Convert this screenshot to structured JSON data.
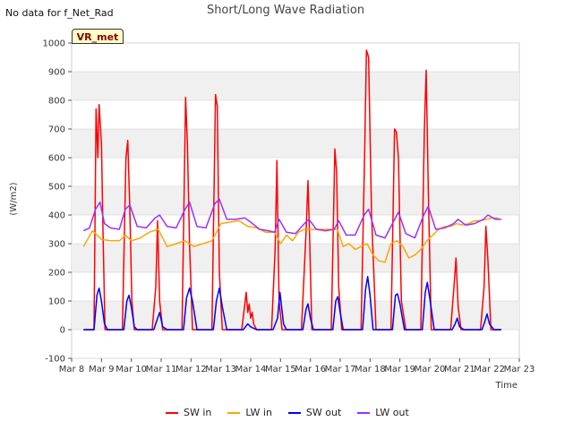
{
  "header": {
    "nodata_text": "No data for f_Net_Rad",
    "badge_text": "VR_met"
  },
  "chart_data": {
    "type": "line",
    "title": "Short/Long Wave Radiation",
    "xlabel": "Time",
    "ylabel": "(W/m2)",
    "ylim": [
      -100,
      1000
    ],
    "yticks": [
      -100,
      0,
      100,
      200,
      300,
      400,
      500,
      600,
      700,
      800,
      900,
      1000
    ],
    "xlim": [
      8,
      23
    ],
    "xticks": [
      8,
      9,
      10,
      11,
      12,
      13,
      14,
      15,
      16,
      17,
      18,
      19,
      20,
      21,
      22,
      23
    ],
    "xtick_labels": [
      "Mar 8",
      "Mar 9",
      "Mar 10",
      "Mar 11",
      "Mar 12",
      "Mar 13",
      "Mar 14",
      "Mar 15",
      "Mar 16",
      "Mar 17",
      "Mar 18",
      "Mar 19",
      "Mar 20",
      "Mar 21",
      "Mar 22",
      "Mar 23"
    ],
    "grid": true,
    "legend_position": "bottom",
    "series": [
      {
        "name": "SW in",
        "color": "#ff0000",
        "x": [
          8.4,
          8.75,
          8.82,
          8.88,
          8.92,
          9.0,
          9.06,
          9.12,
          9.2,
          9.7,
          9.82,
          9.88,
          9.95,
          10.02,
          10.1,
          10.18,
          10.7,
          10.82,
          10.88,
          10.95,
          11.05,
          11.2,
          11.7,
          11.82,
          11.88,
          11.95,
          12.05,
          12.2,
          12.7,
          12.82,
          12.88,
          12.95,
          13.05,
          13.2,
          13.7,
          13.85,
          13.9,
          13.95,
          14.0,
          14.05,
          14.1,
          14.2,
          14.7,
          14.82,
          14.88,
          14.95,
          15.05,
          15.2,
          15.7,
          15.85,
          15.92,
          15.98,
          16.05,
          16.15,
          16.7,
          16.82,
          16.88,
          16.95,
          17.05,
          17.2,
          17.7,
          17.82,
          17.88,
          17.95,
          18.05,
          18.2,
          18.7,
          18.82,
          18.88,
          18.95,
          19.05,
          19.2,
          19.7,
          19.82,
          19.88,
          19.95,
          20.05,
          20.2,
          20.7,
          20.82,
          20.88,
          20.95,
          21.05,
          21.2,
          21.7,
          21.82,
          21.88,
          21.95,
          22.05,
          22.2,
          22.4
        ],
        "y": [
          0,
          0,
          770,
          600,
          785,
          650,
          300,
          0,
          0,
          0,
          600,
          660,
          420,
          100,
          0,
          0,
          0,
          150,
          380,
          100,
          0,
          0,
          0,
          810,
          650,
          300,
          0,
          0,
          0,
          820,
          780,
          200,
          0,
          0,
          0,
          130,
          60,
          90,
          40,
          60,
          20,
          0,
          0,
          280,
          590,
          100,
          0,
          0,
          0,
          330,
          520,
          300,
          0,
          0,
          0,
          630,
          550,
          150,
          0,
          0,
          0,
          620,
          975,
          950,
          400,
          0,
          0,
          700,
          690,
          600,
          100,
          0,
          0,
          700,
          905,
          500,
          0,
          0,
          0,
          160,
          250,
          80,
          0,
          0,
          0,
          150,
          360,
          240,
          0,
          0,
          0
        ]
      },
      {
        "name": "LW in",
        "color": "#ffa500",
        "x": [
          8.4,
          8.7,
          9.0,
          9.3,
          9.6,
          9.8,
          10.0,
          10.3,
          10.6,
          10.9,
          11.2,
          11.5,
          11.8,
          12.1,
          12.4,
          12.7,
          13.0,
          13.3,
          13.6,
          13.9,
          14.2,
          14.5,
          14.8,
          15.0,
          15.2,
          15.4,
          15.6,
          15.8,
          16.0,
          16.3,
          16.6,
          16.9,
          17.1,
          17.3,
          17.5,
          17.7,
          17.9,
          18.1,
          18.3,
          18.5,
          18.7,
          18.9,
          19.1,
          19.3,
          19.5,
          19.7,
          19.9,
          20.1,
          20.3,
          20.5,
          20.7,
          20.9,
          21.1,
          21.3,
          21.5,
          21.7,
          21.9,
          22.1,
          22.3
        ],
        "y": [
          290,
          345,
          315,
          310,
          310,
          330,
          310,
          320,
          340,
          350,
          290,
          300,
          310,
          290,
          300,
          310,
          370,
          375,
          380,
          360,
          355,
          340,
          340,
          300,
          330,
          310,
          340,
          350,
          350,
          350,
          350,
          350,
          290,
          300,
          280,
          290,
          300,
          260,
          240,
          235,
          300,
          310,
          290,
          250,
          260,
          280,
          310,
          330,
          350,
          360,
          360,
          370,
          365,
          370,
          380,
          380,
          385,
          390,
          390
        ]
      },
      {
        "name": "SW out",
        "color": "#0000ff",
        "x": [
          8.4,
          8.75,
          8.85,
          8.92,
          9.0,
          9.1,
          9.2,
          9.75,
          9.85,
          9.92,
          10.0,
          10.1,
          10.2,
          10.75,
          10.85,
          10.95,
          11.05,
          11.2,
          11.75,
          11.85,
          11.95,
          12.05,
          12.2,
          12.75,
          12.85,
          12.95,
          13.05,
          13.2,
          13.75,
          13.9,
          14.0,
          14.1,
          14.2,
          14.75,
          14.9,
          14.98,
          15.1,
          15.2,
          15.75,
          15.85,
          15.92,
          16.0,
          16.1,
          16.75,
          16.85,
          16.92,
          17.0,
          17.1,
          17.75,
          17.85,
          17.92,
          18.0,
          18.1,
          18.75,
          18.85,
          18.92,
          19.0,
          19.15,
          19.75,
          19.85,
          19.92,
          20.0,
          20.15,
          20.75,
          20.85,
          20.92,
          21.0,
          21.15,
          21.75,
          21.85,
          21.92,
          22.0,
          22.15,
          22.4
        ],
        "y": [
          0,
          0,
          120,
          145,
          100,
          20,
          0,
          0,
          100,
          120,
          80,
          10,
          0,
          0,
          30,
          60,
          10,
          0,
          0,
          110,
          145,
          100,
          0,
          0,
          100,
          145,
          80,
          0,
          0,
          20,
          10,
          5,
          0,
          0,
          40,
          130,
          20,
          0,
          0,
          70,
          90,
          40,
          0,
          0,
          100,
          115,
          60,
          0,
          0,
          140,
          185,
          120,
          0,
          0,
          120,
          125,
          90,
          0,
          0,
          130,
          165,
          110,
          0,
          0,
          20,
          40,
          10,
          0,
          0,
          30,
          55,
          20,
          0,
          0
        ]
      },
      {
        "name": "LW out",
        "color": "#9b30ff",
        "x": [
          8.4,
          8.6,
          8.8,
          8.95,
          9.1,
          9.3,
          9.6,
          9.8,
          9.95,
          10.2,
          10.5,
          10.8,
          10.95,
          11.2,
          11.5,
          11.8,
          11.95,
          12.2,
          12.5,
          12.8,
          12.95,
          13.2,
          13.5,
          13.8,
          14.0,
          14.3,
          14.6,
          14.8,
          14.95,
          15.2,
          15.5,
          15.8,
          15.95,
          16.2,
          16.5,
          16.8,
          16.95,
          17.2,
          17.5,
          17.8,
          17.95,
          18.2,
          18.5,
          18.8,
          18.95,
          19.2,
          19.5,
          19.8,
          19.95,
          20.2,
          20.5,
          20.8,
          20.95,
          21.2,
          21.5,
          21.8,
          21.95,
          22.2,
          22.4
        ],
        "y": [
          345,
          355,
          420,
          445,
          370,
          355,
          350,
          420,
          435,
          360,
          355,
          390,
          400,
          360,
          355,
          420,
          445,
          360,
          355,
          440,
          455,
          385,
          385,
          390,
          375,
          350,
          345,
          340,
          385,
          340,
          335,
          370,
          385,
          350,
          345,
          350,
          380,
          330,
          330,
          400,
          420,
          330,
          320,
          380,
          410,
          335,
          320,
          400,
          430,
          350,
          355,
          370,
          385,
          365,
          370,
          385,
          400,
          385,
          385
        ]
      }
    ]
  }
}
